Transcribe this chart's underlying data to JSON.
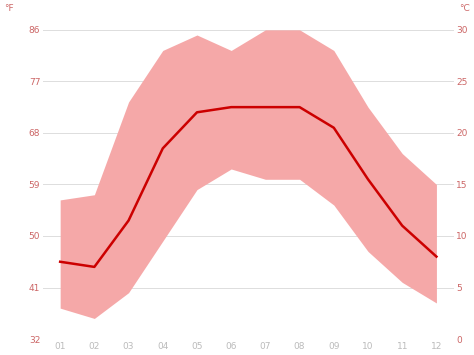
{
  "months": [
    1,
    2,
    3,
    4,
    5,
    6,
    7,
    8,
    9,
    10,
    11,
    12
  ],
  "avg_temp_c": [
    7.5,
    7.0,
    11.5,
    18.5,
    22.0,
    22.5,
    22.5,
    22.5,
    20.5,
    15.5,
    11.0,
    8.0
  ],
  "max_temp_c": [
    13.5,
    14.0,
    23.0,
    28.0,
    29.5,
    28.0,
    30.0,
    30.0,
    28.0,
    22.5,
    18.0,
    15.0
  ],
  "min_temp_c": [
    3.0,
    2.0,
    4.5,
    9.5,
    14.5,
    16.5,
    15.5,
    15.5,
    13.0,
    8.5,
    5.5,
    3.5
  ],
  "ylim": [
    0,
    30
  ],
  "yticks_c": [
    0,
    5,
    10,
    15,
    20,
    25,
    30
  ],
  "yticks_f": [
    32,
    41,
    50,
    59,
    68,
    77,
    86
  ],
  "xlim": [
    0.5,
    12.5
  ],
  "line_color": "#cc0000",
  "band_color": "#f5a8a8",
  "grid_color": "#dddddd",
  "bg_color": "#ffffff",
  "axis_label_color": "#cc6666",
  "tick_color": "#bbbbbb",
  "label_f": "°F",
  "label_c": "°C",
  "line_width": 1.8,
  "tick_fontsize": 6.5
}
